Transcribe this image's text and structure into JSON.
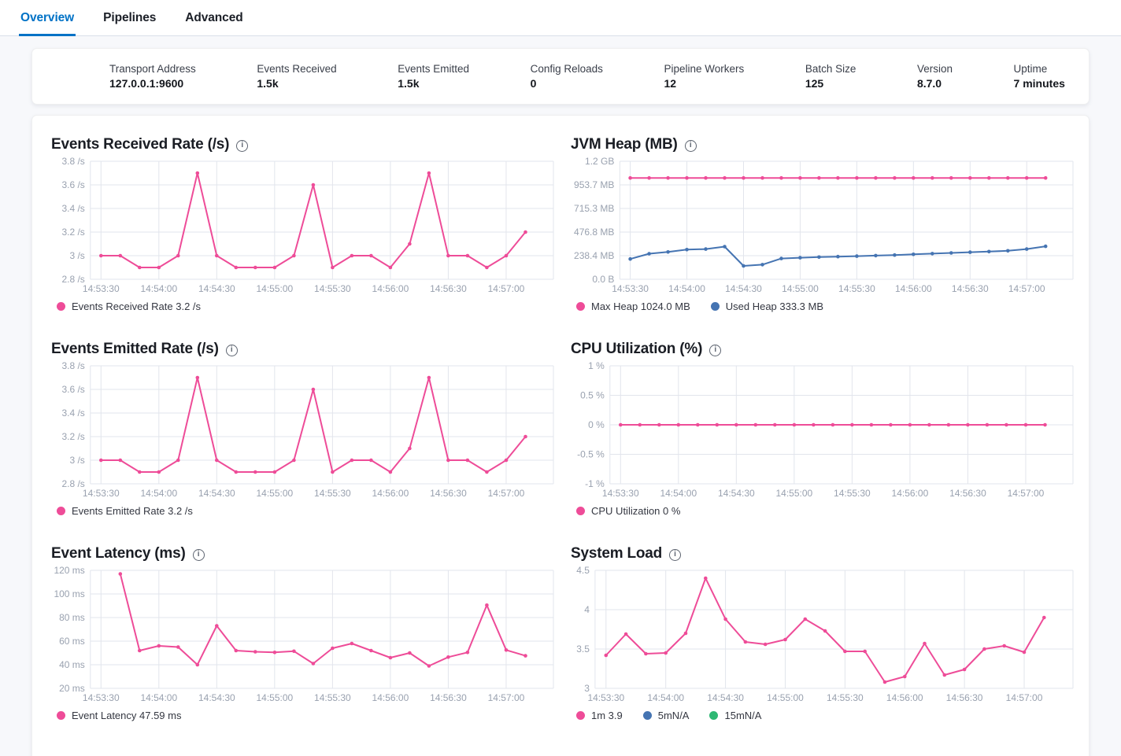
{
  "tabs": [
    {
      "label": "Overview",
      "active": true
    },
    {
      "label": "Pipelines",
      "active": false
    },
    {
      "label": "Advanced",
      "active": false
    }
  ],
  "stats": [
    {
      "label": "Transport Address",
      "value": "127.0.0.1:9600"
    },
    {
      "label": "Events Received",
      "value": "1.5k"
    },
    {
      "label": "Events Emitted",
      "value": "1.5k"
    },
    {
      "label": "Config Reloads",
      "value": "0"
    },
    {
      "label": "Pipeline Workers",
      "value": "12"
    },
    {
      "label": "Batch Size",
      "value": "125"
    },
    {
      "label": "Version",
      "value": "8.7.0"
    },
    {
      "label": "Uptime",
      "value": "7 minutes"
    }
  ],
  "icons": {
    "info": "i"
  },
  "colors": {
    "accent": "#0072c6",
    "pink": "#ee4c98",
    "blue": "#4574b2",
    "green": "#2eb873",
    "grid": "#e2e5ec",
    "tick": "#99a1af"
  },
  "chart_data": [
    {
      "type": "line",
      "title": "Events Received Rate (/s)",
      "ylim": [
        2.8,
        3.8
      ],
      "y_ticks": [
        {
          "label": "2.8 /s",
          "value": 2.8
        },
        {
          "label": "3 /s",
          "value": 3.0
        },
        {
          "label": "3.2 /s",
          "value": 3.2
        },
        {
          "label": "3.4 /s",
          "value": 3.4
        },
        {
          "label": "3.6 /s",
          "value": 3.6
        },
        {
          "label": "3.8 /s",
          "value": 3.8
        }
      ],
      "x_ticks": [
        {
          "label": "14:53:30",
          "index": 0
        },
        {
          "label": "14:54:00",
          "index": 3
        },
        {
          "label": "14:54:30",
          "index": 6
        },
        {
          "label": "14:55:00",
          "index": 9
        },
        {
          "label": "14:55:30",
          "index": 12
        },
        {
          "label": "14:56:00",
          "index": 15
        },
        {
          "label": "14:56:30",
          "index": 18
        },
        {
          "label": "14:57:00",
          "index": 21
        }
      ],
      "x_slots": 24,
      "series": [
        {
          "name": "Events Received Rate",
          "color": "#ee4c98",
          "start_index": 0,
          "values": [
            3,
            3,
            2.9,
            2.9,
            3,
            3.7,
            3,
            2.9,
            2.9,
            2.9,
            3,
            3.6,
            2.9,
            3,
            3,
            2.9,
            3.1,
            3.7,
            3,
            3,
            2.9,
            3,
            3.2
          ]
        }
      ],
      "legend": [
        {
          "label": "Events Received Rate 3.2 /s",
          "color": "#ee4c98"
        }
      ]
    },
    {
      "type": "line",
      "title": "JVM Heap (MB)",
      "ylim": [
        0,
        1192.1
      ],
      "y_ticks": [
        {
          "label": "0.0 B",
          "value": 0
        },
        {
          "label": "238.4 MB",
          "value": 238.42
        },
        {
          "label": "476.8 MB",
          "value": 476.84
        },
        {
          "label": "715.3 MB",
          "value": 715.26
        },
        {
          "label": "953.7 MB",
          "value": 953.67
        },
        {
          "label": "1.2 GB",
          "value": 1192.09
        }
      ],
      "x_ticks": [
        {
          "label": "14:53:30",
          "index": 0
        },
        {
          "label": "14:54:00",
          "index": 3
        },
        {
          "label": "14:54:30",
          "index": 6
        },
        {
          "label": "14:55:00",
          "index": 9
        },
        {
          "label": "14:55:30",
          "index": 12
        },
        {
          "label": "14:56:00",
          "index": 15
        },
        {
          "label": "14:56:30",
          "index": 18
        },
        {
          "label": "14:57:00",
          "index": 21
        }
      ],
      "x_slots": 24,
      "series": [
        {
          "name": "Max Heap",
          "color": "#ee4c98",
          "start_index": 0,
          "values": [
            1024,
            1024,
            1024,
            1024,
            1024,
            1024,
            1024,
            1024,
            1024,
            1024,
            1024,
            1024,
            1024,
            1024,
            1024,
            1024,
            1024,
            1024,
            1024,
            1024,
            1024,
            1024,
            1024
          ]
        },
        {
          "name": "Used Heap",
          "color": "#4574b2",
          "start_index": 0,
          "values": [
            205,
            258,
            276,
            300,
            305,
            330,
            135,
            148,
            210,
            218,
            224,
            229,
            234,
            239,
            245,
            252,
            259,
            266,
            273,
            280,
            288,
            305,
            333.3
          ]
        }
      ],
      "legend": [
        {
          "label": "Max Heap 1024.0 MB",
          "color": "#ee4c98"
        },
        {
          "label": "Used Heap 333.3 MB",
          "color": "#4574b2"
        }
      ]
    },
    {
      "type": "line",
      "title": "Events Emitted Rate (/s)",
      "ylim": [
        2.8,
        3.8
      ],
      "y_ticks": [
        {
          "label": "2.8 /s",
          "value": 2.8
        },
        {
          "label": "3 /s",
          "value": 3.0
        },
        {
          "label": "3.2 /s",
          "value": 3.2
        },
        {
          "label": "3.4 /s",
          "value": 3.4
        },
        {
          "label": "3.6 /s",
          "value": 3.6
        },
        {
          "label": "3.8 /s",
          "value": 3.8
        }
      ],
      "x_ticks": [
        {
          "label": "14:53:30",
          "index": 0
        },
        {
          "label": "14:54:00",
          "index": 3
        },
        {
          "label": "14:54:30",
          "index": 6
        },
        {
          "label": "14:55:00",
          "index": 9
        },
        {
          "label": "14:55:30",
          "index": 12
        },
        {
          "label": "14:56:00",
          "index": 15
        },
        {
          "label": "14:56:30",
          "index": 18
        },
        {
          "label": "14:57:00",
          "index": 21
        }
      ],
      "x_slots": 24,
      "series": [
        {
          "name": "Events Emitted Rate",
          "color": "#ee4c98",
          "start_index": 0,
          "values": [
            3,
            3,
            2.9,
            2.9,
            3,
            3.7,
            3,
            2.9,
            2.9,
            2.9,
            3,
            3.6,
            2.9,
            3,
            3,
            2.9,
            3.1,
            3.7,
            3,
            3,
            2.9,
            3,
            3.2
          ]
        }
      ],
      "legend": [
        {
          "label": "Events Emitted Rate 3.2 /s",
          "color": "#ee4c98"
        }
      ]
    },
    {
      "type": "line",
      "title": "CPU Utilization (%)",
      "ylim": [
        -1,
        1
      ],
      "y_ticks": [
        {
          "label": "-1 %",
          "value": -1
        },
        {
          "label": "-0.5 %",
          "value": -0.5
        },
        {
          "label": "0 %",
          "value": 0
        },
        {
          "label": "0.5 %",
          "value": 0.5
        },
        {
          "label": "1 %",
          "value": 1
        }
      ],
      "x_ticks": [
        {
          "label": "14:53:30",
          "index": 0
        },
        {
          "label": "14:54:00",
          "index": 3
        },
        {
          "label": "14:54:30",
          "index": 6
        },
        {
          "label": "14:55:00",
          "index": 9
        },
        {
          "label": "14:55:30",
          "index": 12
        },
        {
          "label": "14:56:00",
          "index": 15
        },
        {
          "label": "14:56:30",
          "index": 18
        },
        {
          "label": "14:57:00",
          "index": 21
        }
      ],
      "x_slots": 24,
      "series": [
        {
          "name": "CPU Utilization",
          "color": "#ee4c98",
          "start_index": 0,
          "values": [
            0,
            0,
            0,
            0,
            0,
            0,
            0,
            0,
            0,
            0,
            0,
            0,
            0,
            0,
            0,
            0,
            0,
            0,
            0,
            0,
            0,
            0,
            0
          ]
        }
      ],
      "legend": [
        {
          "label": "CPU Utilization 0 %",
          "color": "#ee4c98"
        }
      ]
    },
    {
      "type": "line",
      "title": "Event Latency (ms)",
      "ylim": [
        20,
        120
      ],
      "y_ticks": [
        {
          "label": "20 ms",
          "value": 20
        },
        {
          "label": "40 ms",
          "value": 40
        },
        {
          "label": "60 ms",
          "value": 60
        },
        {
          "label": "80 ms",
          "value": 80
        },
        {
          "label": "100 ms",
          "value": 100
        },
        {
          "label": "120 ms",
          "value": 120
        }
      ],
      "x_ticks": [
        {
          "label": "14:53:30",
          "index": 0
        },
        {
          "label": "14:54:00",
          "index": 3
        },
        {
          "label": "14:54:30",
          "index": 6
        },
        {
          "label": "14:55:00",
          "index": 9
        },
        {
          "label": "14:55:30",
          "index": 12
        },
        {
          "label": "14:56:00",
          "index": 15
        },
        {
          "label": "14:56:30",
          "index": 18
        },
        {
          "label": "14:57:00",
          "index": 21
        }
      ],
      "x_slots": 24,
      "series": [
        {
          "name": "Event Latency",
          "color": "#ee4c98",
          "start_index": 1,
          "values": [
            117,
            52,
            56,
            55,
            40,
            73,
            52,
            51,
            50.5,
            51.5,
            41,
            54,
            58,
            52,
            46,
            50,
            39,
            46.5,
            50.5,
            90.5,
            52.5,
            47.59
          ]
        }
      ],
      "legend": [
        {
          "label": "Event Latency 47.59 ms",
          "color": "#ee4c98"
        }
      ]
    },
    {
      "type": "line",
      "title": "System Load",
      "ylim": [
        3,
        4.5
      ],
      "y_ticks": [
        {
          "label": "3",
          "value": 3
        },
        {
          "label": "3.5",
          "value": 3.5
        },
        {
          "label": "4",
          "value": 4
        },
        {
          "label": "4.5",
          "value": 4.5
        }
      ],
      "x_ticks": [
        {
          "label": "14:53:30",
          "index": 0
        },
        {
          "label": "14:54:00",
          "index": 3
        },
        {
          "label": "14:54:30",
          "index": 6
        },
        {
          "label": "14:55:00",
          "index": 9
        },
        {
          "label": "14:55:30",
          "index": 12
        },
        {
          "label": "14:56:00",
          "index": 15
        },
        {
          "label": "14:56:30",
          "index": 18
        },
        {
          "label": "14:57:00",
          "index": 21
        }
      ],
      "x_slots": 24,
      "series": [
        {
          "name": "1m",
          "color": "#ee4c98",
          "start_index": 0,
          "values": [
            3.42,
            3.69,
            3.44,
            3.45,
            3.7,
            4.4,
            3.88,
            3.59,
            3.56,
            3.62,
            3.88,
            3.73,
            3.47,
            3.47,
            3.08,
            3.15,
            3.57,
            3.17,
            3.24,
            3.5,
            3.54,
            3.46,
            3.9
          ]
        }
      ],
      "legend": [
        {
          "label": "1m 3.9",
          "color": "#ee4c98"
        },
        {
          "label": "5mN/A",
          "color": "#4574b2"
        },
        {
          "label": "15mN/A",
          "color": "#2eb873"
        }
      ]
    }
  ]
}
